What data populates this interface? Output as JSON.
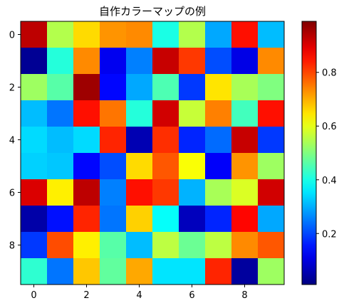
{
  "chart_data": {
    "type": "heatmap",
    "title": "自作カラーマップの例",
    "colormap": "jet",
    "grid": false,
    "rows": 10,
    "cols": 10,
    "values": [
      [
        0.94,
        0.55,
        0.66,
        0.73,
        0.74,
        0.4,
        0.55,
        0.29,
        0.86,
        0.31
      ],
      [
        0.02,
        0.41,
        0.74,
        0.11,
        0.25,
        0.93,
        0.82,
        0.2,
        0.1,
        0.74
      ],
      [
        0.53,
        0.46,
        0.97,
        0.13,
        0.29,
        0.45,
        0.18,
        0.65,
        0.54,
        0.5
      ],
      [
        0.31,
        0.24,
        0.86,
        0.76,
        0.41,
        0.92,
        0.57,
        0.75,
        0.44,
        0.86
      ],
      [
        0.34,
        0.31,
        0.34,
        0.84,
        0.05,
        0.83,
        0.16,
        0.23,
        0.93,
        0.18
      ],
      [
        0.33,
        0.32,
        0.13,
        0.2,
        0.66,
        0.79,
        0.62,
        0.12,
        0.73,
        0.53
      ],
      [
        0.91,
        0.64,
        0.94,
        0.25,
        0.86,
        0.82,
        0.3,
        0.54,
        0.59,
        0.92
      ],
      [
        0.04,
        0.14,
        0.84,
        0.24,
        0.67,
        0.38,
        0.06,
        0.16,
        0.87,
        0.29
      ],
      [
        0.18,
        0.8,
        0.64,
        0.46,
        0.31,
        0.56,
        0.48,
        0.56,
        0.74,
        0.79
      ],
      [
        0.42,
        0.24,
        0.68,
        0.47,
        0.71,
        0.35,
        0.35,
        0.84,
        0.03,
        0.53
      ]
    ],
    "x_ticks": [
      0,
      2,
      4,
      6,
      8
    ],
    "x_tick_labels": [
      "0",
      "2",
      "4",
      "6",
      "8"
    ],
    "y_ticks": [
      0,
      2,
      4,
      6,
      8
    ],
    "y_tick_labels": [
      "0",
      "2",
      "4",
      "6",
      "8"
    ],
    "colorbar": {
      "range": [
        0.01,
        0.99
      ],
      "ticks": [
        0.2,
        0.4,
        0.6,
        0.8
      ],
      "tick_labels": [
        "0.2",
        "0.4",
        "0.6",
        "0.8"
      ]
    }
  }
}
